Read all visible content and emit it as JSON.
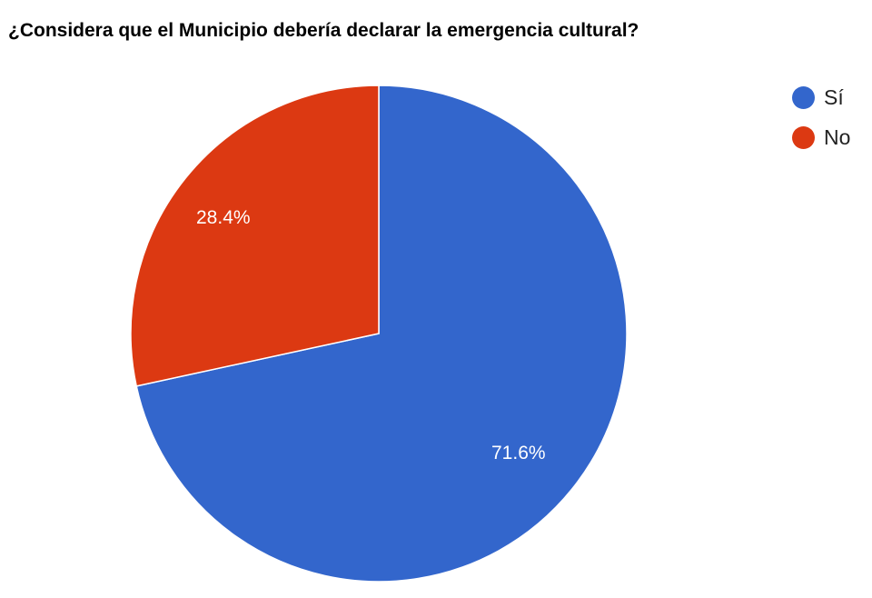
{
  "chart_data": {
    "type": "pie",
    "title": "¿Considera que el Municipio debería declarar la emergencia cultural?",
    "categories": [
      "Sí",
      "No"
    ],
    "values": [
      71.6,
      28.4
    ],
    "value_labels": [
      "71.6%",
      "28.4%"
    ],
    "colors": [
      "#3366cc",
      "#dc3912"
    ],
    "legend_position": "right",
    "start_angle": "top, clockwise"
  },
  "legend": {
    "items": [
      {
        "label": "Sí",
        "color": "#3366cc"
      },
      {
        "label": "No",
        "color": "#dc3912"
      }
    ]
  }
}
